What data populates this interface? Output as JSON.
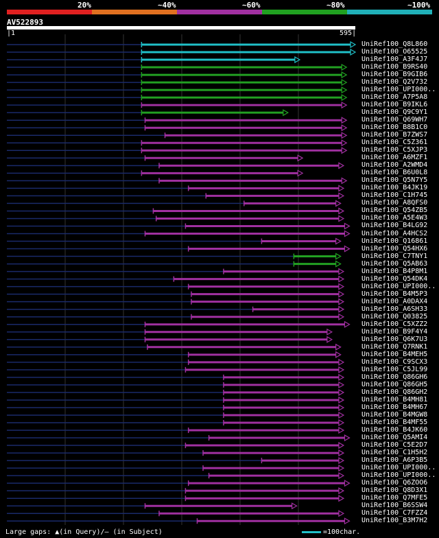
{
  "scale": {
    "labels": [
      "20%",
      "~40%",
      "~60%",
      "~80%",
      "~100%"
    ],
    "colors": [
      "#e02020",
      "#e07020",
      "#a030a0",
      "#20a020",
      "#20b0b8"
    ]
  },
  "query": {
    "name": "AV522893",
    "start": "1",
    "end": "595"
  },
  "hits": [
    {
      "name": "UniRef100_Q8L860",
      "c": "#20c0c8",
      "q0": 230,
      "q1": 595,
      "mk": []
    },
    {
      "name": "UniRef100_O65525",
      "c": "#20c0c8",
      "q0": 230,
      "q1": 595,
      "mk": []
    },
    {
      "name": "UniRef100_A3F4J7",
      "c": "#20c0c8",
      "q0": 230,
      "q1": 500,
      "mk": []
    },
    {
      "name": "UniRef100_B9RS40",
      "c": "#22a022",
      "q0": 230,
      "q1": 580,
      "mk": []
    },
    {
      "name": "UniRef100_B9GIB6",
      "c": "#22a022",
      "q0": 230,
      "q1": 580,
      "mk": []
    },
    {
      "name": "UniRef100_Q2V732",
      "c": "#22a022",
      "q0": 230,
      "q1": 580,
      "mk": []
    },
    {
      "name": "UniRef100_UPI000..",
      "c": "#22a022",
      "q0": 230,
      "q1": 580,
      "mk": []
    },
    {
      "name": "UniRef100_A7P5A8",
      "c": "#22a022",
      "q0": 230,
      "q1": 580,
      "mk": []
    },
    {
      "name": "UniRef100_B9IKL6",
      "c": "#a030a0",
      "q0": 230,
      "q1": 580,
      "mk": []
    },
    {
      "name": "UniRef100_Q9C9Y1",
      "c": "#22a022",
      "q0": 230,
      "q1": 480,
      "mk": []
    },
    {
      "name": "UniRef100_Q69WH7",
      "c": "#a030a0",
      "q0": 236,
      "q1": 580,
      "mk": []
    },
    {
      "name": "UniRef100_B8B1C0",
      "c": "#a030a0",
      "q0": 236,
      "q1": 580,
      "mk": []
    },
    {
      "name": "UniRef100_B7ZWS7",
      "c": "#a030a0",
      "q0": 270,
      "q1": 580,
      "mk": []
    },
    {
      "name": "UniRef100_C5Z361",
      "c": "#a030a0",
      "q0": 230,
      "q1": 580,
      "mk": []
    },
    {
      "name": "UniRef100_C5XJP3",
      "c": "#a030a0",
      "q0": 230,
      "q1": 580,
      "mk": []
    },
    {
      "name": "UniRef100_A6MZF1",
      "c": "#a030a0",
      "q0": 236,
      "q1": 505,
      "mk": []
    },
    {
      "name": "UniRef100_A2WMD4",
      "c": "#a030a0",
      "q0": 260,
      "q1": 575,
      "mk": []
    },
    {
      "name": "UniRef100_B6U0L8",
      "c": "#a030a0",
      "q0": 230,
      "q1": 505,
      "mk": []
    },
    {
      "name": "UniRef100_Q5N7Y5",
      "c": "#a030a0",
      "q0": 260,
      "q1": 580,
      "mk": []
    },
    {
      "name": "UniRef100_B4JK19",
      "c": "#a030a0",
      "q0": 310,
      "q1": 575,
      "mk": []
    },
    {
      "name": "UniRef100_C1H745",
      "c": "#a030a0",
      "q0": 340,
      "q1": 575,
      "mk": []
    },
    {
      "name": "UniRef100_A8QFS0",
      "c": "#a030a0",
      "q0": 405,
      "q1": 570,
      "mk": []
    },
    {
      "name": "UniRef100_Q54ZB5",
      "c": "#a030a0",
      "q0": 250,
      "q1": 575,
      "mk": []
    },
    {
      "name": "UniRef100_A5E4W3",
      "c": "#a030a0",
      "q0": 255,
      "q1": 575,
      "mk": []
    },
    {
      "name": "UniRef100_B4LG92",
      "c": "#a030a0",
      "q0": 305,
      "q1": 585,
      "mk": []
    },
    {
      "name": "UniRef100_A4HCS2",
      "c": "#a030a0",
      "q0": 236,
      "q1": 585,
      "mk": []
    },
    {
      "name": "UniRef100_Q16861",
      "c": "#a030a0",
      "q0": 435,
      "q1": 570,
      "mk": []
    },
    {
      "name": "UniRef100_Q54HX6",
      "c": "#a030a0",
      "q0": 310,
      "q1": 585,
      "mk": []
    },
    {
      "name": "UniRef100_C7TNY1",
      "c": "#22a022",
      "q0": 490,
      "q1": 570,
      "mk": []
    },
    {
      "name": "UniRef100_Q5AB63",
      "c": "#22a022",
      "q0": 490,
      "q1": 570,
      "mk": []
    },
    {
      "name": "UniRef100_B4P8M1",
      "c": "#a030a0",
      "q0": 370,
      "q1": 575,
      "mk": []
    },
    {
      "name": "UniRef100_Q54DK4",
      "c": "#a030a0",
      "q0": 285,
      "q1": 575,
      "mk": []
    },
    {
      "name": "UniRef100_UPI000..",
      "c": "#a030a0",
      "q0": 310,
      "q1": 575,
      "mk": []
    },
    {
      "name": "UniRef100_B4M5P3",
      "c": "#a030a0",
      "q0": 315,
      "q1": 575,
      "mk": []
    },
    {
      "name": "UniRef100_A0DAX4",
      "c": "#a030a0",
      "q0": 315,
      "q1": 575,
      "mk": []
    },
    {
      "name": "UniRef100_A6SH33",
      "c": "#a030a0",
      "q0": 420,
      "q1": 575,
      "mk": []
    },
    {
      "name": "UniRef100_Q03825",
      "c": "#a030a0",
      "q0": 315,
      "q1": 575,
      "mk": []
    },
    {
      "name": "UniRef100_C5XZZ2",
      "c": "#a030a0",
      "q0": 236,
      "q1": 585,
      "mk": []
    },
    {
      "name": "UniRef100_B9F4Y4",
      "c": "#a030a0",
      "q0": 236,
      "q1": 555,
      "mk": []
    },
    {
      "name": "UniRef100_Q6K7U3",
      "c": "#a030a0",
      "q0": 236,
      "q1": 555,
      "mk": []
    },
    {
      "name": "UniRef100_Q7RNK1",
      "c": "#a030a0",
      "q0": 240,
      "q1": 570,
      "mk": []
    },
    {
      "name": "UniRef100_B4MEH5",
      "c": "#a030a0",
      "q0": 310,
      "q1": 570,
      "mk": []
    },
    {
      "name": "UniRef100_C9SCX3",
      "c": "#a030a0",
      "q0": 310,
      "q1": 575,
      "mk": []
    },
    {
      "name": "UniRef100_C5JL99",
      "c": "#a030a0",
      "q0": 305,
      "q1": 575,
      "mk": []
    },
    {
      "name": "UniRef100_Q86GH6",
      "c": "#a030a0",
      "q0": 370,
      "q1": 575,
      "mk": []
    },
    {
      "name": "UniRef100_Q86GH5",
      "c": "#a030a0",
      "q0": 370,
      "q1": 575,
      "mk": []
    },
    {
      "name": "UniRef100_Q86GH2",
      "c": "#a030a0",
      "q0": 370,
      "q1": 575,
      "mk": []
    },
    {
      "name": "UniRef100_B4MH81",
      "c": "#a030a0",
      "q0": 370,
      "q1": 575,
      "mk": []
    },
    {
      "name": "UniRef100_B4MH67",
      "c": "#a030a0",
      "q0": 370,
      "q1": 575,
      "mk": []
    },
    {
      "name": "UniRef100_B4MGW8",
      "c": "#a030a0",
      "q0": 370,
      "q1": 575,
      "mk": []
    },
    {
      "name": "UniRef100_B4MF55",
      "c": "#a030a0",
      "q0": 370,
      "q1": 575,
      "mk": []
    },
    {
      "name": "UniRef100_B4JK60",
      "c": "#a030a0",
      "q0": 310,
      "q1": 575,
      "mk": []
    },
    {
      "name": "UniRef100_Q5AMI4",
      "c": "#a030a0",
      "q0": 345,
      "q1": 585,
      "mk": []
    },
    {
      "name": "UniRef100_C5E2D7",
      "c": "#a030a0",
      "q0": 305,
      "q1": 575,
      "mk": []
    },
    {
      "name": "UniRef100_C1H5H2",
      "c": "#a030a0",
      "q0": 335,
      "q1": 575,
      "mk": []
    },
    {
      "name": "UniRef100_A6P3B5",
      "c": "#a030a0",
      "q0": 435,
      "q1": 575,
      "mk": []
    },
    {
      "name": "UniRef100_UPI000..",
      "c": "#a030a0",
      "q0": 335,
      "q1": 575,
      "mk": []
    },
    {
      "name": "UniRef100_UPI000..",
      "c": "#a030a0",
      "q0": 345,
      "q1": 575,
      "mk": []
    },
    {
      "name": "UniRef100_Q6ZOO6",
      "c": "#a030a0",
      "q0": 310,
      "q1": 585,
      "mk": []
    },
    {
      "name": "UniRef100_Q8D3X1",
      "c": "#a030a0",
      "q0": 305,
      "q1": 575,
      "mk": []
    },
    {
      "name": "UniRef100_Q7MFE5",
      "c": "#a030a0",
      "q0": 305,
      "q1": 575,
      "mk": []
    },
    {
      "name": "UniRef100_B6SSW4",
      "c": "#a030a0",
      "q0": 236,
      "q1": 495,
      "mk": []
    },
    {
      "name": "UniRef100_C7FZZ4",
      "c": "#a030a0",
      "q0": 260,
      "q1": 575,
      "mk": []
    },
    {
      "name": "UniRef100_B3M7H2",
      "c": "#a030a0",
      "q0": 325,
      "q1": 585,
      "mk": []
    }
  ],
  "legend": {
    "gaps_text": "Large gaps: ▲(in Query)/– (in Subject)",
    "scale_text": "=100char."
  }
}
